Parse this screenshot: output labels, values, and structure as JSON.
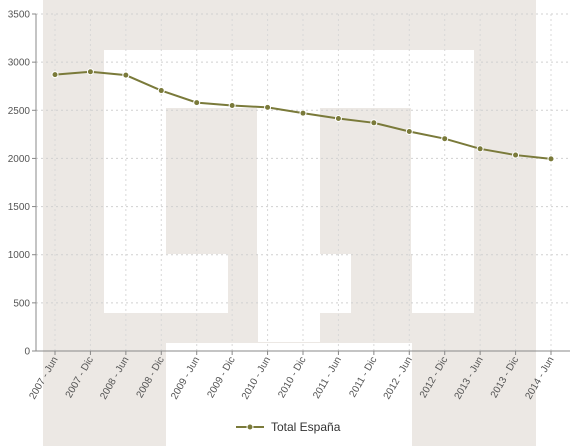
{
  "chart_data": {
    "type": "line",
    "categories": [
      "2007 - Jun",
      "2007 - Dic",
      "2008 - Jun",
      "2008 - Dic",
      "2009 - Jun",
      "2009 - Dic",
      "2010 - Jun",
      "2010 - Dic",
      "2011 - Jun",
      "2011 - Dic",
      "2012 - Jun",
      "2012 - Dic",
      "2013 - Jun",
      "2013 - Dic",
      "2014 - Jun"
    ],
    "series": [
      {
        "name": "Total España",
        "values": [
          2870,
          2900,
          2865,
          2705,
          2580,
          2550,
          2530,
          2470,
          2415,
          2370,
          2280,
          2205,
          2100,
          2035,
          1995
        ]
      }
    ],
    "ylim": [
      0,
      3500
    ],
    "yticks": [
      0,
      500,
      1000,
      1500,
      2000,
      2500,
      3000,
      3500
    ],
    "grid": true,
    "legend_position": "bottom-center",
    "series_color": "#7a7a3a",
    "watermark": "Instituto Nacional de Estadística logo"
  }
}
